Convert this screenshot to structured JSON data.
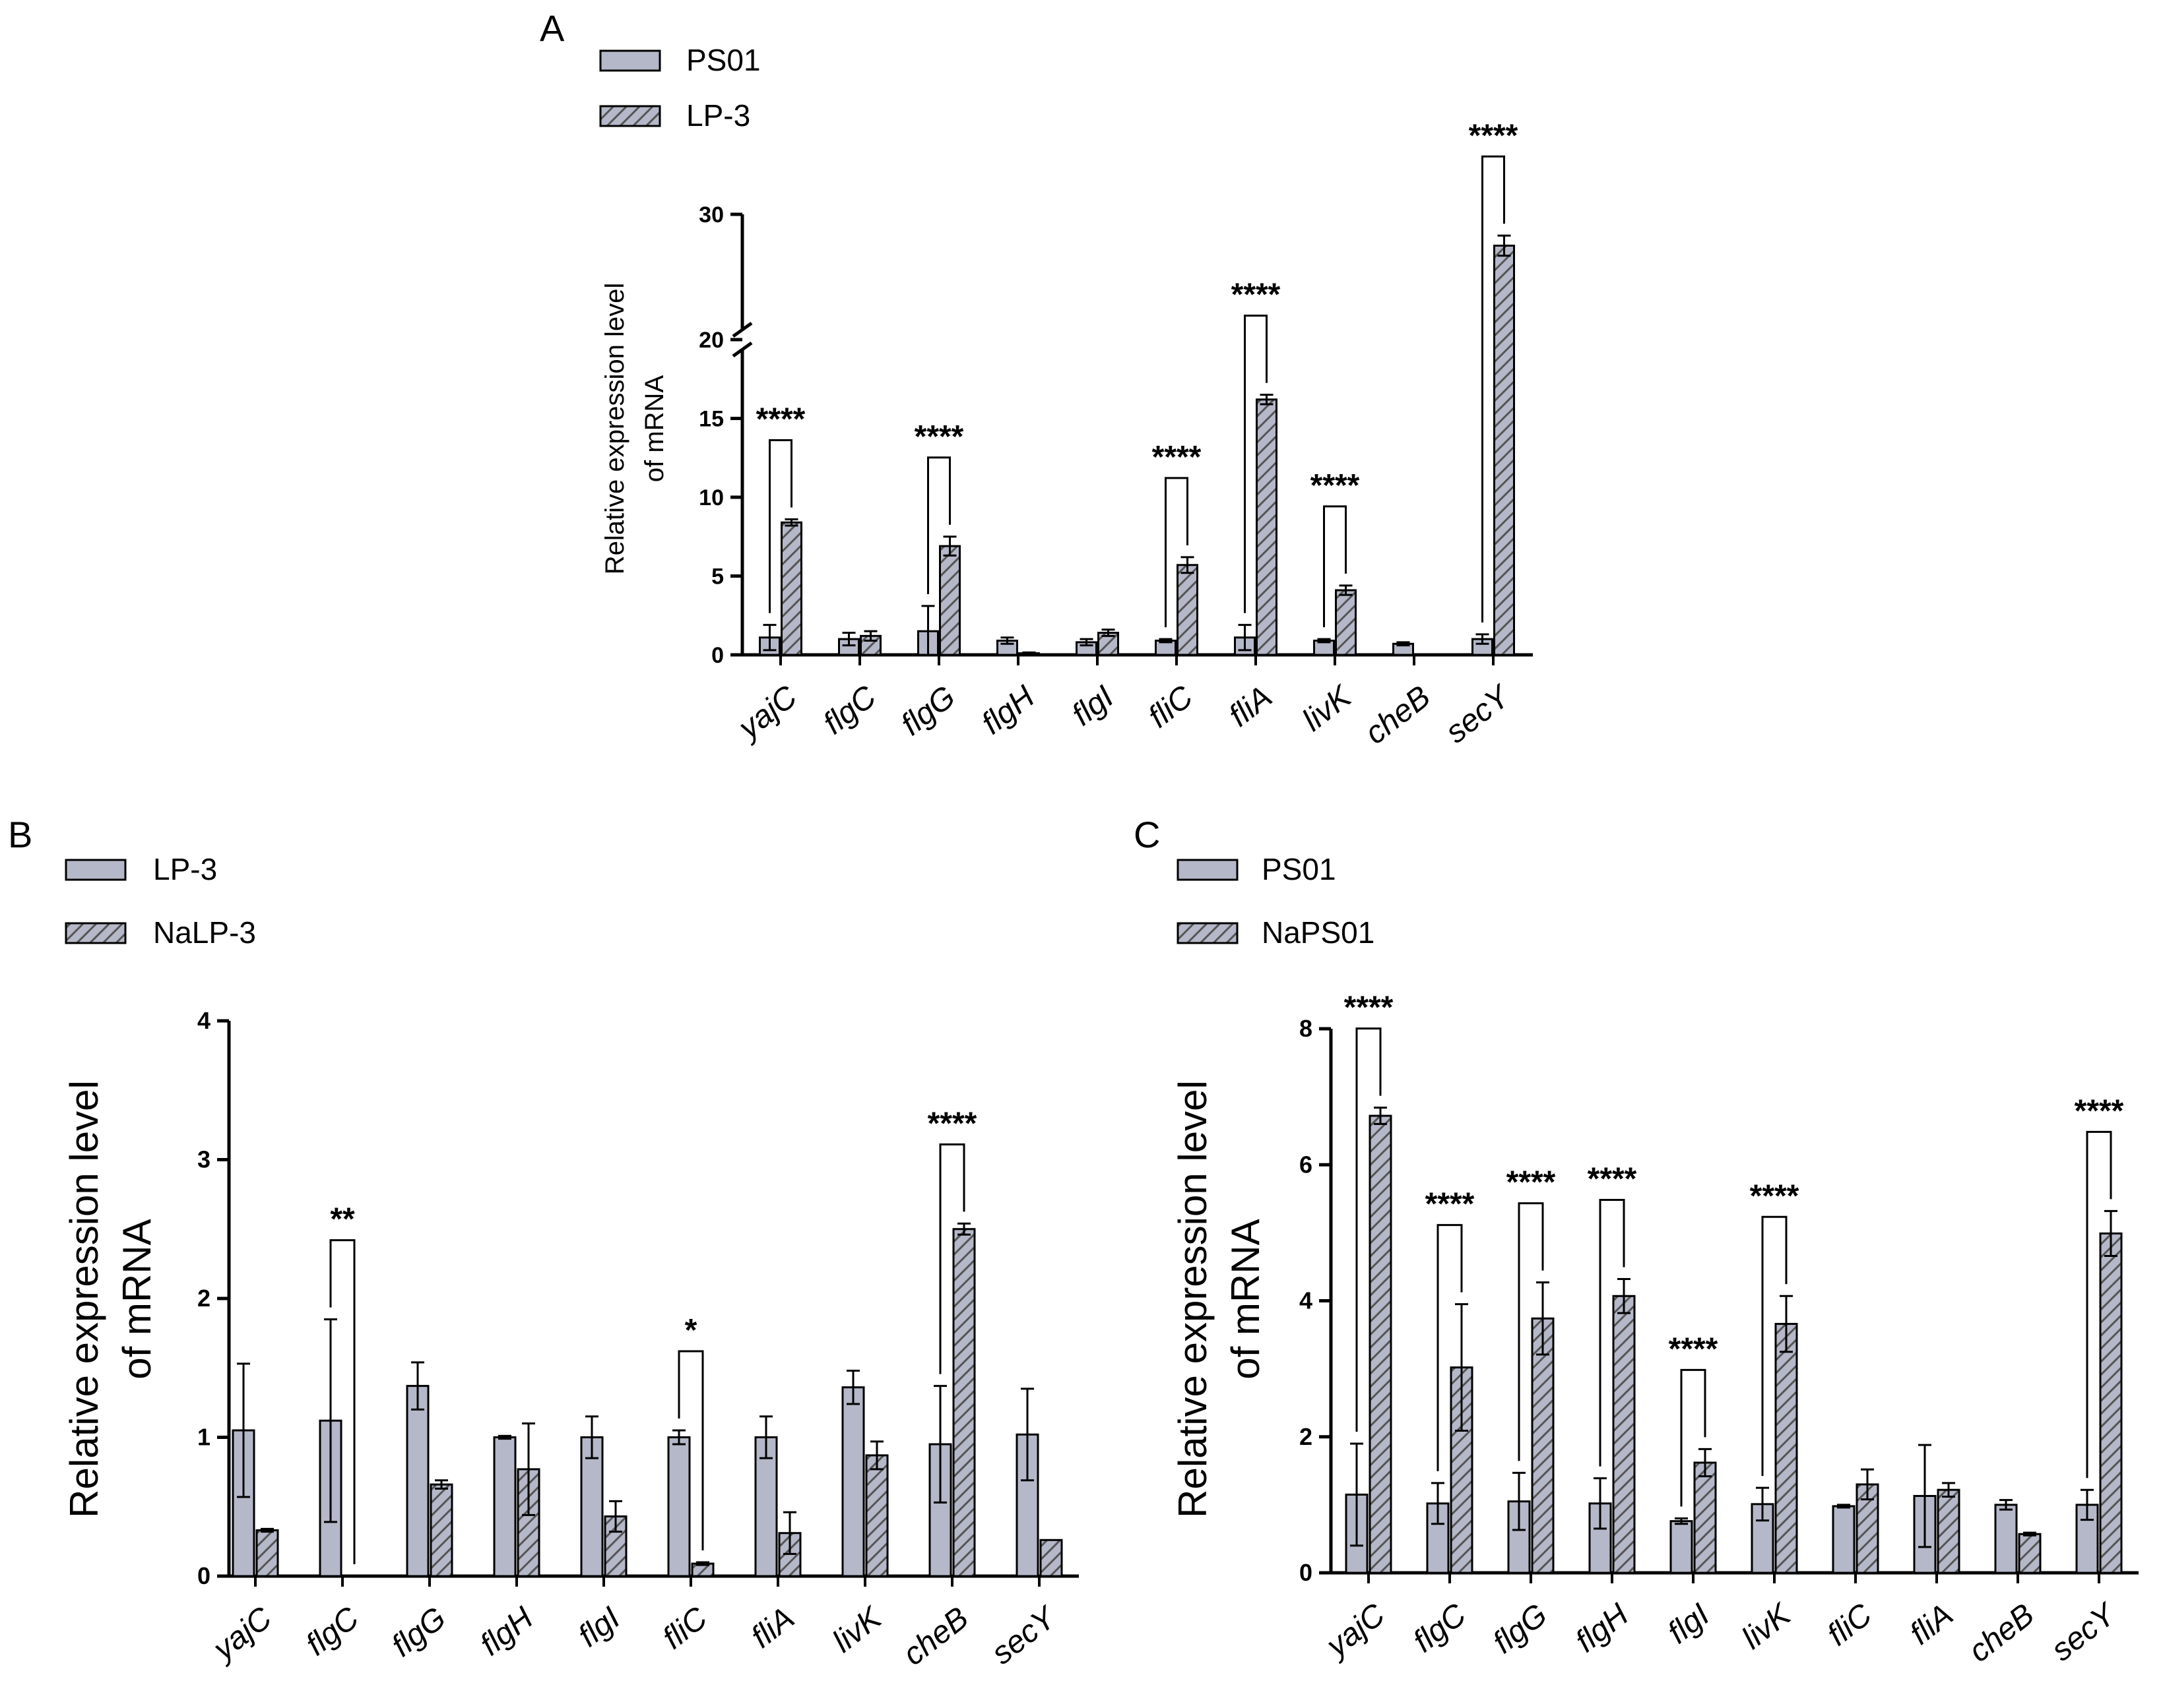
{
  "colors": {
    "bar_fill": "#b5b8c8",
    "hatch": "#555555",
    "axis": "#000000"
  },
  "chart_data": [
    {
      "panel": "A",
      "type": "bar",
      "ylabel": "Relative expression level of mRNA",
      "ylabel_lines": [
        "Relative expression level",
        "of mRNA"
      ],
      "y_axis_break": [
        20,
        30
      ],
      "ylim": [
        0,
        30
      ],
      "yticks": [
        "0",
        "5",
        "10",
        "15",
        "20",
        "30"
      ],
      "categories": [
        "yajC",
        "flgC",
        "flgG",
        "flgH",
        "flgI",
        "fliC",
        "fliA",
        "livK",
        "cheB",
        "secY"
      ],
      "legend": [
        "PS01",
        "LP-3"
      ],
      "series": [
        {
          "name": "PS01",
          "values": [
            1.1,
            1.0,
            1.5,
            0.9,
            0.8,
            0.9,
            1.1,
            0.9,
            0.7,
            1.0
          ],
          "errors": [
            0.8,
            0.4,
            1.6,
            0.2,
            0.2,
            0.1,
            0.8,
            0.1,
            0.1,
            0.3
          ]
        },
        {
          "name": "LP-3",
          "values": [
            8.4,
            1.2,
            6.9,
            0.1,
            1.4,
            5.7,
            16.2,
            4.1,
            0.0,
            27.5
          ],
          "errors": [
            0.2,
            0.3,
            0.6,
            0.05,
            0.2,
            0.5,
            0.3,
            0.3,
            0.0,
            0.8
          ]
        }
      ],
      "significance": [
        {
          "category": "yajC",
          "label": "****"
        },
        {
          "category": "flgG",
          "label": "****"
        },
        {
          "category": "fliC",
          "label": "****"
        },
        {
          "category": "fliA",
          "label": "****"
        },
        {
          "category": "livK",
          "label": "****"
        },
        {
          "category": "secY",
          "label": "****"
        }
      ]
    },
    {
      "panel": "B",
      "type": "bar",
      "ylabel": "Relative expression level of mRNA",
      "ylabel_lines": [
        "Relative expression level",
        "of mRNA"
      ],
      "ylim": [
        0,
        4
      ],
      "yticks": [
        "0",
        "1",
        "2",
        "3",
        "4"
      ],
      "categories": [
        "yajC",
        "flgC",
        "flgG",
        "flgH",
        "flgI",
        "fliC",
        "fliA",
        "livK",
        "cheB",
        "secY"
      ],
      "legend": [
        "LP-3",
        "NaLP-3"
      ],
      "series": [
        {
          "name": "LP-3",
          "values": [
            1.05,
            1.12,
            1.37,
            1.0,
            1.0,
            1.0,
            1.0,
            1.36,
            0.95,
            1.02
          ],
          "errors": [
            0.48,
            0.73,
            0.17,
            0.01,
            0.15,
            0.05,
            0.15,
            0.12,
            0.42,
            0.33
          ]
        },
        {
          "name": "NaLP-3",
          "values": [
            0.33,
            0.0,
            0.66,
            0.77,
            0.43,
            0.09,
            0.31,
            0.87,
            2.5,
            0.26
          ],
          "errors": [
            0.01,
            0.0,
            0.03,
            0.33,
            0.11,
            0.01,
            0.15,
            0.1,
            0.04,
            0.0
          ]
        }
      ],
      "significance": [
        {
          "category": "flgC",
          "label": "**"
        },
        {
          "category": "fliC",
          "label": "*"
        },
        {
          "category": "cheB",
          "label": "****"
        }
      ]
    },
    {
      "panel": "C",
      "type": "bar",
      "ylabel": "Relative expression level of mRNA",
      "ylabel_lines": [
        "Relative expression level",
        "of mRNA"
      ],
      "ylim": [
        0,
        8
      ],
      "yticks": [
        "0",
        "2",
        "4",
        "6",
        "8"
      ],
      "categories": [
        "yajC",
        "flgC",
        "flgG",
        "flgH",
        "flgI",
        "livK",
        "fliC",
        "fliA",
        "cheB",
        "secY"
      ],
      "legend": [
        "PS01",
        "NaPS01"
      ],
      "series": [
        {
          "name": "PS01",
          "values": [
            1.15,
            1.02,
            1.05,
            1.02,
            0.76,
            1.01,
            0.98,
            1.13,
            1.0,
            1.0
          ],
          "errors": [
            0.75,
            0.3,
            0.42,
            0.37,
            0.04,
            0.24,
            0.02,
            0.75,
            0.07,
            0.22
          ]
        },
        {
          "name": "NaPS01",
          "values": [
            6.72,
            3.02,
            3.74,
            4.07,
            1.62,
            3.66,
            1.3,
            1.22,
            0.57,
            4.99
          ],
          "errors": [
            0.12,
            0.93,
            0.53,
            0.25,
            0.2,
            0.41,
            0.22,
            0.1,
            0.02,
            0.33
          ]
        }
      ],
      "significance": [
        {
          "category": "yajC",
          "label": "****"
        },
        {
          "category": "flgC",
          "label": "****"
        },
        {
          "category": "flgG",
          "label": "****"
        },
        {
          "category": "flgH",
          "label": "****"
        },
        {
          "category": "flgI",
          "label": "****"
        },
        {
          "category": "livK",
          "label": "****"
        },
        {
          "category": "secY",
          "label": "****"
        }
      ]
    }
  ]
}
